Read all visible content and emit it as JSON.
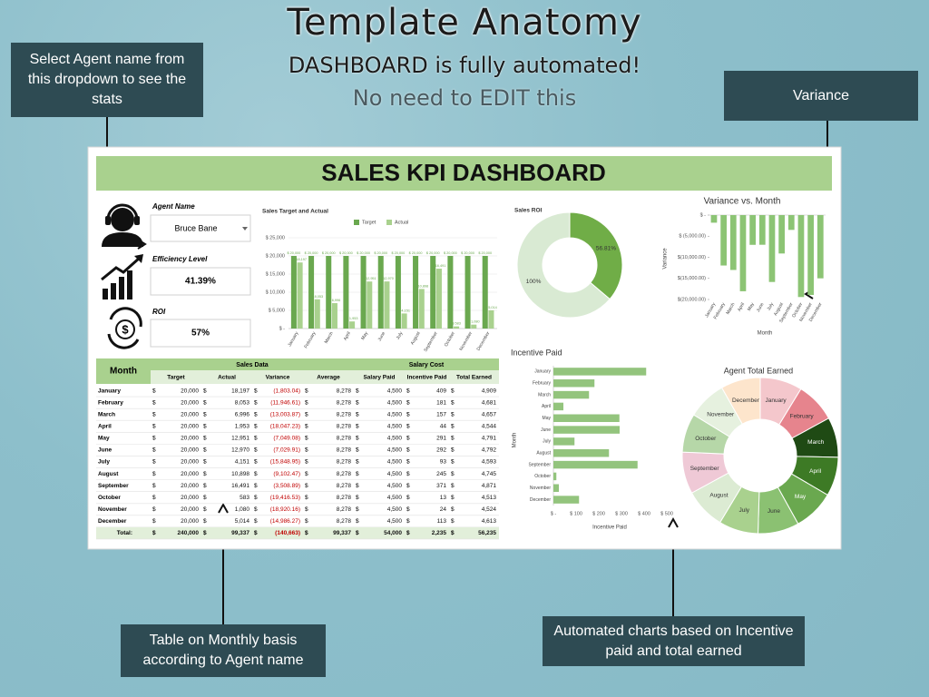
{
  "header": {
    "title": "Template Anatomy",
    "subtitle": "DASHBOARD is fully automated!",
    "note": "No need to EDIT this"
  },
  "callouts": [
    "Select Agent name from this dropdown to see the stats",
    "Variance",
    "Table on Monthly basis according to Agent name",
    "Automated charts based on Incentive paid and total earned"
  ],
  "dashboard": {
    "title": "SALES KPI DASHBOARD",
    "agent_label": "Agent Name",
    "agent_name": "Bruce Bane",
    "efficiency_label": "Efficiency Level",
    "efficiency_value": "41.39%",
    "roi_label": "ROI",
    "roi_value": "57%",
    "table": {
      "group_headers": [
        "Sales Data",
        "Salary Cost"
      ],
      "columns": [
        "Month",
        "Target",
        "Actual",
        "Variance",
        "Average",
        "Salary Paid",
        "Incentive Paid",
        "Total Earned"
      ],
      "currency": "$",
      "rows": [
        [
          "January",
          "20,000",
          "18,197",
          "(1,803.04)",
          "8,278",
          "4,500",
          "409",
          "4,909"
        ],
        [
          "February",
          "20,000",
          "8,053",
          "(11,946.61)",
          "8,278",
          "4,500",
          "181",
          "4,681"
        ],
        [
          "March",
          "20,000",
          "6,996",
          "(13,003.87)",
          "8,278",
          "4,500",
          "157",
          "4,657"
        ],
        [
          "April",
          "20,000",
          "1,953",
          "(18,047.23)",
          "8,278",
          "4,500",
          "44",
          "4,544"
        ],
        [
          "May",
          "20,000",
          "12,951",
          "(7,049.08)",
          "8,278",
          "4,500",
          "291",
          "4,791"
        ],
        [
          "June",
          "20,000",
          "12,970",
          "(7,029.91)",
          "8,278",
          "4,500",
          "292",
          "4,792"
        ],
        [
          "July",
          "20,000",
          "4,151",
          "(15,848.95)",
          "8,278",
          "4,500",
          "93",
          "4,593"
        ],
        [
          "August",
          "20,000",
          "10,898",
          "(9,102.47)",
          "8,278",
          "4,500",
          "245",
          "4,745"
        ],
        [
          "September",
          "20,000",
          "16,491",
          "(3,508.89)",
          "8,278",
          "4,500",
          "371",
          "4,871"
        ],
        [
          "October",
          "20,000",
          "583",
          "(19,416.53)",
          "8,278",
          "4,500",
          "13",
          "4,513"
        ],
        [
          "November",
          "20,000",
          "1,080",
          "(18,920.16)",
          "8,278",
          "4,500",
          "24",
          "4,524"
        ],
        [
          "December",
          "20,000",
          "5,014",
          "(14,986.27)",
          "8,278",
          "4,500",
          "113",
          "4,613"
        ],
        [
          "Total:",
          "240,000",
          "99,337",
          "(140,663)",
          "99,337",
          "54,000",
          "2,235",
          "56,235"
        ]
      ]
    }
  },
  "chart_data": [
    {
      "type": "bar",
      "title": "Sales Target and Actual",
      "categories": [
        "January",
        "February",
        "March",
        "April",
        "May",
        "June",
        "July",
        "August",
        "September",
        "October",
        "November",
        "December"
      ],
      "series": [
        {
          "name": "Target",
          "color": "#6aa84f",
          "values": [
            20000,
            20000,
            20000,
            20000,
            20000,
            20000,
            20000,
            20000,
            20000,
            20000,
            20000,
            20000
          ],
          "value_labels": [
            "$ 20,000",
            "$ 20,000",
            "$ 20,000",
            "$ 20,000",
            "$ 20,000",
            "$ 20,000",
            "$ 20,000",
            "$ 20,000",
            "$ 20,000",
            "$ 20,000",
            "$ 20,000",
            "$ 20,000"
          ]
        },
        {
          "name": "Actual",
          "color": "#a9d18e",
          "values": [
            18197,
            8053,
            6996,
            1953,
            12951,
            12970,
            4151,
            10898,
            16491,
            583,
            1080,
            5014
          ],
          "value_labels": [
            "$ 18,197",
            "$ 8,053",
            "$ 6,996",
            "$ 1,953",
            "$ 12,951",
            "$ 12,970",
            "$ 4,151",
            "$ 10,898",
            "$ 16,491",
            "$ 583",
            "$ 1,080",
            "$ 5,014"
          ]
        }
      ],
      "ylim": [
        0,
        25000
      ],
      "yticks": [
        {
          "value": 0,
          "label": "$ -"
        },
        {
          "value": 5000,
          "label": "$ 5,000"
        },
        {
          "value": 10000,
          "label": "$ 10,000"
        },
        {
          "value": 15000,
          "label": "$ 15,000"
        },
        {
          "value": 20000,
          "label": "$ 20,000"
        },
        {
          "value": 25000,
          "label": "$ 25,000"
        }
      ],
      "grid": true,
      "legend": "top"
    },
    {
      "type": "pie",
      "title": "Sales ROI",
      "values": [
        56.81,
        100
      ],
      "value_labels": [
        "56.81%",
        "100%"
      ],
      "colors": [
        "#70ad47",
        "#d9ead3"
      ]
    },
    {
      "type": "bar",
      "title": "Variance vs. Month",
      "x_label": "Month",
      "y_label": "Variance",
      "categories": [
        "January",
        "February",
        "March",
        "April",
        "May",
        "June",
        "July",
        "August",
        "September",
        "October",
        "November",
        "December"
      ],
      "values": [
        -1803.04,
        -11946.61,
        -13003.87,
        -18047.23,
        -7049.08,
        -7029.91,
        -15848.95,
        -9102.47,
        -3508.89,
        -19416.53,
        -18920.16,
        -14986.27
      ],
      "color": "#8cc474",
      "ylim": [
        -20000,
        0
      ],
      "yticks": [
        {
          "value": 0,
          "label": "$ -"
        },
        {
          "value": -5000,
          "label": "$ (5,000.00)"
        },
        {
          "value": -10000,
          "label": "$(10,000.00)"
        },
        {
          "value": -15000,
          "label": "$(15,000.00)"
        },
        {
          "value": -20000,
          "label": "$(20,000.00)"
        }
      ],
      "grid": false
    },
    {
      "type": "bar",
      "orientation": "horizontal",
      "title": "Incentive Paid",
      "x_label": "Incentive Paid",
      "y_label": "Month",
      "categories": [
        "January",
        "February",
        "March",
        "April",
        "May",
        "June",
        "July",
        "August",
        "September",
        "October",
        "November",
        "December"
      ],
      "values": [
        409,
        181,
        157,
        44,
        291,
        292,
        93,
        245,
        371,
        13,
        24,
        113
      ],
      "color": "#93c47d",
      "xlim": [
        0,
        500
      ],
      "xticks": [
        {
          "value": 0,
          "label": "$ -"
        },
        {
          "value": 100,
          "label": "$ 100"
        },
        {
          "value": 200,
          "label": "$ 200"
        },
        {
          "value": 300,
          "label": "$ 300"
        },
        {
          "value": 400,
          "label": "$ 400"
        },
        {
          "value": 500,
          "label": "$ 500"
        }
      ],
      "grid": false
    },
    {
      "type": "pie",
      "title": "Agent Total Earned",
      "categories": [
        "January",
        "February",
        "March",
        "April",
        "May",
        "June",
        "July",
        "August",
        "September",
        "October",
        "November",
        "December"
      ],
      "values": [
        4909,
        4681,
        4657,
        4544,
        4791,
        4792,
        4593,
        4745,
        4871,
        4513,
        4524,
        4613
      ],
      "colors": [
        "#f4c7cc",
        "#e6848d",
        "#1f4a14",
        "#3d7a25",
        "#6aa84f",
        "#8bc172",
        "#a9d18e",
        "#dcebd3",
        "#efc9d6",
        "#b6d7a8",
        "#e6f1df",
        "#fde5cc"
      ]
    }
  ]
}
